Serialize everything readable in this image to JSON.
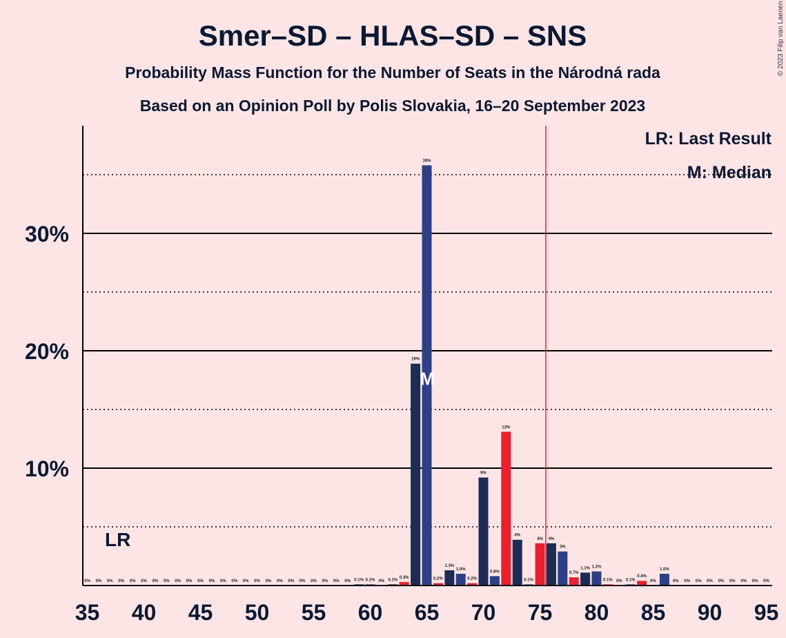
{
  "copyright": "© 2023 Filip van Laenen",
  "chart_data": {
    "type": "bar",
    "title": "Smer–SD – HLAS–SD – SNS",
    "subtitle1": "Probability Mass Function for the Number of Seats in the Národná rada",
    "subtitle2": "Based on an Opinion Poll by Polis Slovakia, 16–20 September 2023",
    "legend": {
      "lr": "LR: Last Result",
      "median": "M: Median",
      "placement": "top-right"
    },
    "last_result_label": "LR",
    "last_result_seat": 38,
    "median_label": "M",
    "median_seat": 65,
    "majority_seat": 76,
    "xlim": [
      35,
      95
    ],
    "ylim": [
      0,
      0.39
    ],
    "x_ticks": [
      "35",
      "40",
      "45",
      "50",
      "55",
      "60",
      "65",
      "70",
      "75",
      "80",
      "85",
      "90",
      "95"
    ],
    "y_ticks_solid": [
      {
        "value": 0.1,
        "label": "10%"
      },
      {
        "value": 0.2,
        "label": "20%"
      },
      {
        "value": 0.3,
        "label": "30%"
      }
    ],
    "y_ticks_dotted": [
      0.05,
      0.15,
      0.25,
      0.35
    ],
    "colors": {
      "dark": "#1c2c55",
      "blue": "#2e3f86",
      "red": "#e8202f",
      "background": "#fde5e5",
      "majority_line": "#e8202f"
    },
    "bars": [
      {
        "seat": 35,
        "value": 0,
        "label": "0%",
        "color": "dark"
      },
      {
        "seat": 36,
        "value": 0,
        "label": "0%",
        "color": "blue"
      },
      {
        "seat": 37,
        "value": 0,
        "label": "0%",
        "color": "red"
      },
      {
        "seat": 38,
        "value": 0,
        "label": "0%",
        "color": "dark"
      },
      {
        "seat": 39,
        "value": 0,
        "label": "0%",
        "color": "blue"
      },
      {
        "seat": 40,
        "value": 0,
        "label": "0%",
        "color": "red"
      },
      {
        "seat": 41,
        "value": 0,
        "label": "0%",
        "color": "dark"
      },
      {
        "seat": 42,
        "value": 0,
        "label": "0%",
        "color": "blue"
      },
      {
        "seat": 43,
        "value": 0,
        "label": "0%",
        "color": "red"
      },
      {
        "seat": 44,
        "value": 0,
        "label": "0%",
        "color": "dark"
      },
      {
        "seat": 45,
        "value": 0,
        "label": "0%",
        "color": "blue"
      },
      {
        "seat": 46,
        "value": 0,
        "label": "0%",
        "color": "red"
      },
      {
        "seat": 47,
        "value": 0,
        "label": "0%",
        "color": "dark"
      },
      {
        "seat": 48,
        "value": 0,
        "label": "0%",
        "color": "blue"
      },
      {
        "seat": 49,
        "value": 0,
        "label": "0%",
        "color": "red"
      },
      {
        "seat": 50,
        "value": 0,
        "label": "0%",
        "color": "dark"
      },
      {
        "seat": 51,
        "value": 0,
        "label": "0%",
        "color": "blue"
      },
      {
        "seat": 52,
        "value": 0,
        "label": "0%",
        "color": "red"
      },
      {
        "seat": 53,
        "value": 0,
        "label": "0%",
        "color": "dark"
      },
      {
        "seat": 54,
        "value": 0,
        "label": "0%",
        "color": "blue"
      },
      {
        "seat": 55,
        "value": 0,
        "label": "0%",
        "color": "red"
      },
      {
        "seat": 56,
        "value": 0,
        "label": "0%",
        "color": "dark"
      },
      {
        "seat": 57,
        "value": 0,
        "label": "0%",
        "color": "blue"
      },
      {
        "seat": 58,
        "value": 0,
        "label": "0%",
        "color": "red"
      },
      {
        "seat": 59,
        "value": 0.001,
        "label": "0.1%",
        "color": "dark"
      },
      {
        "seat": 60,
        "value": 0.001,
        "label": "0.1%",
        "color": "blue"
      },
      {
        "seat": 61,
        "value": 0,
        "label": "0%",
        "color": "red"
      },
      {
        "seat": 62,
        "value": 0.001,
        "label": "0.1%",
        "color": "dark"
      },
      {
        "seat": 63,
        "value": 0.003,
        "label": "0.3%",
        "color": "red"
      },
      {
        "seat": 64,
        "value": 0.189,
        "label": "19%",
        "color": "dark"
      },
      {
        "seat": 65,
        "value": 0.358,
        "label": "36%",
        "color": "blue"
      },
      {
        "seat": 66,
        "value": 0.002,
        "label": "0.2%",
        "color": "red"
      },
      {
        "seat": 67,
        "value": 0.013,
        "label": "1.3%",
        "color": "dark"
      },
      {
        "seat": 68,
        "value": 0.01,
        "label": "1.0%",
        "color": "blue"
      },
      {
        "seat": 69,
        "value": 0.002,
        "label": "0.2%",
        "color": "red"
      },
      {
        "seat": 70,
        "value": 0.092,
        "label": "9%",
        "color": "dark"
      },
      {
        "seat": 71,
        "value": 0.008,
        "label": "0.8%",
        "color": "blue"
      },
      {
        "seat": 72,
        "value": 0.131,
        "label": "13%",
        "color": "red"
      },
      {
        "seat": 73,
        "value": 0.039,
        "label": "4%",
        "color": "dark"
      },
      {
        "seat": 74,
        "value": 0.001,
        "label": "0.1%",
        "color": "blue"
      },
      {
        "seat": 75,
        "value": 0.036,
        "label": "4%",
        "color": "red"
      },
      {
        "seat": 76,
        "value": 0.036,
        "label": "4%",
        "color": "dark"
      },
      {
        "seat": 77,
        "value": 0.029,
        "label": "3%",
        "color": "blue"
      },
      {
        "seat": 78,
        "value": 0.007,
        "label": "0.7%",
        "color": "red"
      },
      {
        "seat": 79,
        "value": 0.011,
        "label": "1.1%",
        "color": "dark"
      },
      {
        "seat": 80,
        "value": 0.012,
        "label": "1.2%",
        "color": "blue"
      },
      {
        "seat": 81,
        "value": 0.001,
        "label": "0.1%",
        "color": "red"
      },
      {
        "seat": 82,
        "value": 0,
        "label": "0%",
        "color": "dark"
      },
      {
        "seat": 83,
        "value": 0.001,
        "label": "0.1%",
        "color": "blue"
      },
      {
        "seat": 84,
        "value": 0.004,
        "label": "0.4%",
        "color": "red"
      },
      {
        "seat": 85,
        "value": 0,
        "label": "0%",
        "color": "dark"
      },
      {
        "seat": 86,
        "value": 0.01,
        "label": "1.0%",
        "color": "blue"
      },
      {
        "seat": 87,
        "value": 0,
        "label": "0%",
        "color": "red"
      },
      {
        "seat": 88,
        "value": 0,
        "label": "0%",
        "color": "dark"
      },
      {
        "seat": 89,
        "value": 0,
        "label": "0%",
        "color": "blue"
      },
      {
        "seat": 90,
        "value": 0,
        "label": "0%",
        "color": "red"
      },
      {
        "seat": 91,
        "value": 0,
        "label": "0%",
        "color": "dark"
      },
      {
        "seat": 92,
        "value": 0,
        "label": "0%",
        "color": "blue"
      },
      {
        "seat": 93,
        "value": 0,
        "label": "0%",
        "color": "red"
      },
      {
        "seat": 94,
        "value": 0,
        "label": "0%",
        "color": "dark"
      },
      {
        "seat": 95,
        "value": 0,
        "label": "0%",
        "color": "blue"
      }
    ]
  }
}
